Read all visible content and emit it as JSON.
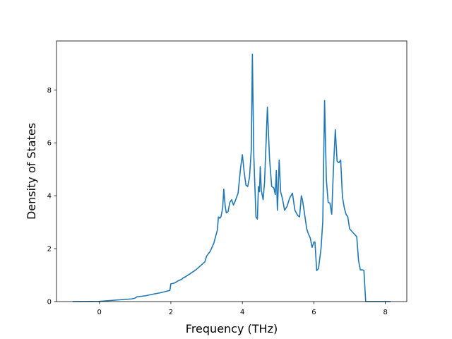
{
  "chart_data": {
    "type": "line",
    "title": "",
    "xlabel": "Frequency (THz)",
    "ylabel": "Density of States",
    "xlim": [
      -1.2,
      8.6
    ],
    "ylim": [
      0,
      9.85
    ],
    "xticks": [
      0,
      2,
      4,
      6,
      8
    ],
    "yticks": [
      0,
      2,
      4,
      6,
      8
    ],
    "grid": false,
    "legend": "none",
    "line_color": "#1f77b4",
    "series": [
      {
        "x": [
          -0.75,
          0.0,
          0.3,
          0.6,
          0.9,
          1.0,
          1.05,
          1.3,
          1.5,
          1.7,
          1.85,
          1.97,
          2.0,
          2.1,
          2.2,
          2.3,
          2.35,
          2.4,
          2.5,
          2.7,
          2.85,
          2.95,
          3.0,
          3.1,
          3.2,
          3.3,
          3.33,
          3.37,
          3.4,
          3.45,
          3.48,
          3.52,
          3.55,
          3.6,
          3.65,
          3.7,
          3.75,
          3.8,
          3.88,
          3.95,
          4.0,
          4.05,
          4.1,
          4.15,
          4.2,
          4.25,
          4.28,
          4.32,
          4.38,
          4.42,
          4.45,
          4.48,
          4.5,
          4.53,
          4.58,
          4.62,
          4.66,
          4.7,
          4.76,
          4.82,
          4.88,
          4.92,
          4.95,
          4.98,
          5.0,
          5.03,
          5.07,
          5.12,
          5.18,
          5.25,
          5.32,
          5.4,
          5.47,
          5.55,
          5.6,
          5.65,
          5.68,
          5.72,
          5.8,
          5.85,
          5.9,
          5.95,
          6.0,
          6.03,
          6.08,
          6.13,
          6.2,
          6.25,
          6.3,
          6.35,
          6.4,
          6.45,
          6.5,
          6.55,
          6.6,
          6.65,
          6.7,
          6.75,
          6.8,
          6.85,
          6.9,
          6.95,
          7.0,
          7.1,
          7.2,
          7.25,
          7.3,
          7.35,
          7.4,
          7.45,
          7.6,
          8.1,
          8.15
        ],
        "y": [
          0.0,
          0.01,
          0.04,
          0.07,
          0.1,
          0.13,
          0.18,
          0.22,
          0.28,
          0.33,
          0.38,
          0.42,
          0.67,
          0.7,
          0.78,
          0.84,
          0.9,
          0.93,
          1.02,
          1.2,
          1.38,
          1.5,
          1.72,
          1.9,
          2.2,
          2.7,
          3.2,
          3.15,
          3.2,
          3.55,
          4.25,
          3.6,
          3.35,
          3.4,
          3.75,
          3.85,
          3.65,
          3.8,
          4.1,
          5.05,
          5.55,
          4.9,
          4.4,
          4.35,
          4.7,
          5.75,
          9.35,
          5.5,
          3.2,
          3.12,
          4.35,
          4.15,
          5.1,
          4.2,
          3.85,
          4.5,
          5.9,
          7.35,
          5.4,
          4.35,
          4.3,
          4.05,
          4.95,
          3.45,
          4.15,
          5.35,
          4.15,
          3.9,
          3.45,
          3.6,
          3.9,
          4.1,
          3.45,
          3.25,
          3.2,
          4.0,
          3.85,
          3.5,
          2.75,
          2.55,
          2.4,
          2.05,
          2.25,
          2.25,
          1.17,
          1.25,
          2.0,
          3.05,
          7.6,
          4.6,
          3.75,
          3.72,
          3.3,
          5.1,
          6.5,
          5.3,
          5.25,
          5.35,
          3.95,
          3.55,
          3.3,
          3.2,
          2.75,
          2.6,
          2.45,
          1.55,
          1.2,
          1.2,
          1.18,
          0.0,
          0.0,
          0.0,
          0.0
        ]
      }
    ]
  }
}
